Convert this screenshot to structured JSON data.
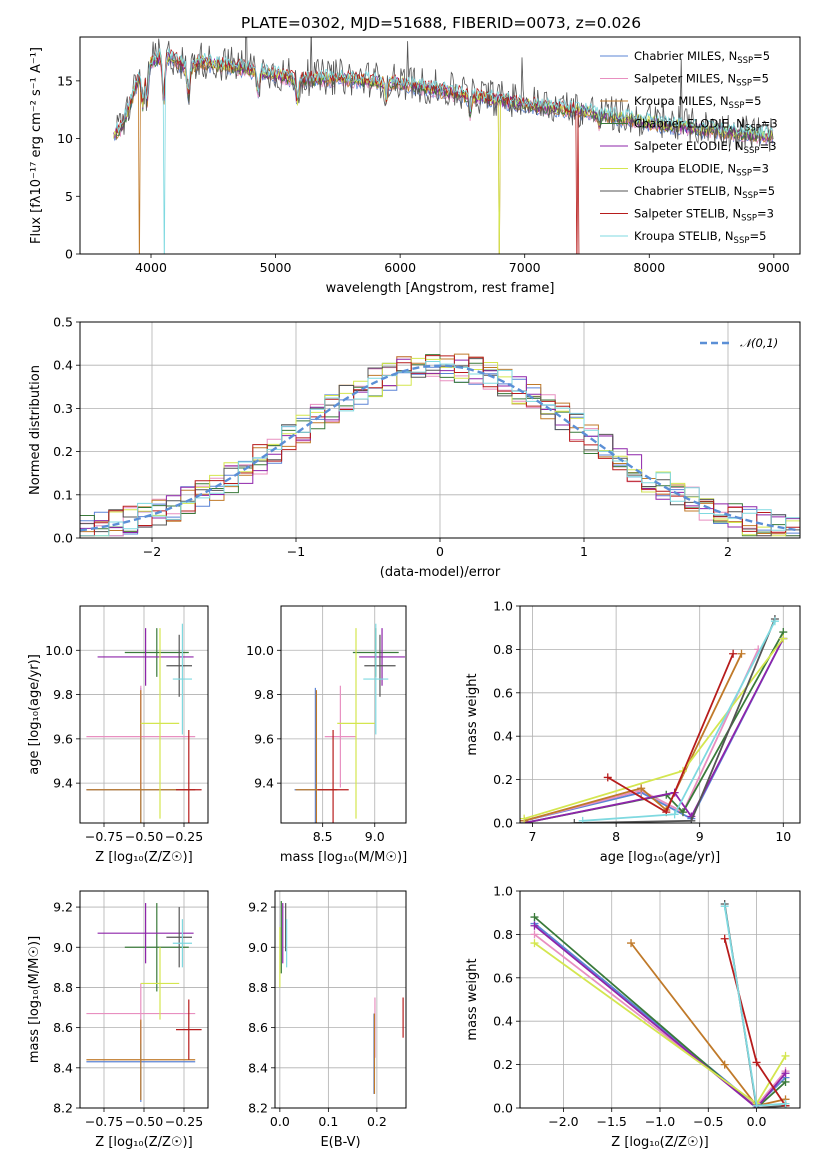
{
  "title": "PLATE=0302, MJD=51688, FIBERID=0073, z=0.026",
  "colors": {
    "Chabrier MILES": "#5b84d6",
    "Salpeter MILES": "#e88fc0",
    "Kroupa MILES": "#c07a2a",
    "Chabrier ELODIE": "#3a7a3a",
    "Salpeter ELODIE": "#8e24aa",
    "Kroupa ELODIE": "#d4e64f",
    "Chabrier STELIB": "#555555",
    "Salpeter STELIB": "#b71c1c",
    "Kroupa STELIB": "#7fd9e0",
    "gauss": "#5b8fd6"
  },
  "chart_data": [
    {
      "type": "line",
      "panel": "spectrum",
      "xlabel": "wavelength [Angstrom, rest frame]",
      "ylabel": "Flux [fλ10⁻¹⁷ erg cm⁻² s⁻¹ A⁻¹]",
      "xlim": [
        3430,
        9210
      ],
      "ylim": [
        0,
        18.8
      ],
      "xticks": [
        4000,
        5000,
        6000,
        7000,
        8000,
        9000
      ],
      "yticks": [
        0,
        5,
        10,
        15
      ],
      "legend_position": "top-right",
      "legend": [
        {
          "model": "Chabrier MILES",
          "n": "5"
        },
        {
          "model": "Salpeter MILES",
          "n": "5"
        },
        {
          "model": "Kroupa MILES",
          "n": "5"
        },
        {
          "model": "Chabrier ELODIE",
          "n": "3"
        },
        {
          "model": "Salpeter ELODIE",
          "n": "3"
        },
        {
          "model": "Kroupa ELODIE",
          "n": "3"
        },
        {
          "model": "Chabrier STELIB",
          "n": "5"
        },
        {
          "model": "Salpeter STELIB",
          "n": "3"
        },
        {
          "model": "Kroupa STELIB",
          "n": "5"
        }
      ],
      "continuum": {
        "x": [
          3700,
          3750,
          3800,
          3850,
          3900,
          3950,
          4000,
          4100,
          4200,
          4300,
          4400,
          4500,
          4700,
          5000,
          5200,
          5500,
          6000,
          6500,
          7000,
          7500,
          8000,
          8500,
          9000
        ],
        "y": [
          10.3,
          10.8,
          12.0,
          13.6,
          15.2,
          16.0,
          16.6,
          17.2,
          16.8,
          16.0,
          16.7,
          16.4,
          16.2,
          15.5,
          15.1,
          15.2,
          14.8,
          13.8,
          13.0,
          12.3,
          11.4,
          10.7,
          10.2
        ]
      }
    },
    {
      "type": "histogram",
      "panel": "residuals",
      "xlabel": "(data-model)/error",
      "ylabel": "Normed distribution",
      "xlim": [
        -2.5,
        2.5
      ],
      "ylim": [
        0,
        0.5
      ],
      "xticks": [
        -2,
        -1,
        0,
        1,
        2
      ],
      "yticks": [
        0.0,
        0.1,
        0.2,
        0.3,
        0.4,
        0.5
      ],
      "legend": "𝒩(0,1)",
      "legend_position": "top-right"
    },
    {
      "type": "errorbar",
      "panel": "age-vs-Z",
      "xlabel": "Z [log₁₀(Z/Z☉)]",
      "ylabel": "age  [log₁₀(age/yr)]",
      "xlim": [
        -0.9,
        -0.1
      ],
      "ylim": [
        9.22,
        10.2
      ],
      "xticks": [
        -0.75,
        -0.5,
        -0.25
      ],
      "yticks": [
        9.4,
        9.6,
        9.8,
        10.0
      ],
      "points": [
        {
          "model": "Chabrier MILES",
          "x": -0.52,
          "xerr": 0.34,
          "y": 9.37,
          "yerr": 0.46
        },
        {
          "model": "Salpeter MILES",
          "x": -0.52,
          "xerr": 0.34,
          "y": 9.61,
          "yerr": 0.23
        },
        {
          "model": "Kroupa MILES",
          "x": -0.52,
          "xerr": 0.34,
          "y": 9.37,
          "yerr": 0.45
        },
        {
          "model": "Chabrier ELODIE",
          "x": -0.42,
          "xerr": 0.2,
          "y": 9.99,
          "yerr": 0.11
        },
        {
          "model": "Salpeter ELODIE",
          "x": -0.49,
          "xerr": 0.3,
          "y": 9.97,
          "yerr": 0.13
        },
        {
          "model": "Kroupa ELODIE",
          "x": -0.4,
          "xerr": 0.12,
          "y": 9.67,
          "yerr": 0.43
        },
        {
          "model": "Chabrier STELIB",
          "x": -0.28,
          "xerr": 0.08,
          "y": 9.93,
          "yerr": 0.14
        },
        {
          "model": "Salpeter STELIB",
          "x": -0.22,
          "xerr": 0.08,
          "y": 9.37,
          "yerr": 0.27
        },
        {
          "model": "Kroupa STELIB",
          "x": -0.26,
          "xerr": 0.06,
          "y": 9.87,
          "yerr": 0.25
        }
      ]
    },
    {
      "type": "errorbar",
      "panel": "age-vs-mass",
      "xlabel": "mass [log₁₀(M/M☉)]",
      "ylabel": "",
      "xlim": [
        8.1,
        9.3
      ],
      "ylim": [
        9.22,
        10.2
      ],
      "xticks": [
        8.5,
        9.0
      ],
      "yticks": [
        9.4,
        9.6,
        9.8,
        10.0
      ],
      "points": [
        {
          "model": "Chabrier MILES",
          "x": 8.43,
          "xerr": 0.2,
          "y": 9.37,
          "yerr": 0.46
        },
        {
          "model": "Salpeter MILES",
          "x": 8.67,
          "xerr": 0.15,
          "y": 9.61,
          "yerr": 0.23
        },
        {
          "model": "Kroupa MILES",
          "x": 8.44,
          "xerr": 0.2,
          "y": 9.37,
          "yerr": 0.45
        },
        {
          "model": "Chabrier ELODIE",
          "x": 9.01,
          "xerr": 0.22,
          "y": 9.99,
          "yerr": 0.11
        },
        {
          "model": "Salpeter ELODIE",
          "x": 9.07,
          "xerr": 0.22,
          "y": 9.97,
          "yerr": 0.13
        },
        {
          "model": "Kroupa ELODIE",
          "x": 8.82,
          "xerr": 0.18,
          "y": 9.67,
          "yerr": 0.43
        },
        {
          "model": "Chabrier STELIB",
          "x": 9.05,
          "xerr": 0.15,
          "y": 9.93,
          "yerr": 0.14
        },
        {
          "model": "Salpeter STELIB",
          "x": 8.6,
          "xerr": 0.15,
          "y": 9.37,
          "yerr": 0.27
        },
        {
          "model": "Kroupa STELIB",
          "x": 9.01,
          "xerr": 0.12,
          "y": 9.87,
          "yerr": 0.25
        }
      ]
    },
    {
      "type": "line",
      "panel": "mass-weight-vs-age",
      "xlabel": "age  [log₁₀(age/yr)]",
      "ylabel": "mass weight",
      "xlim": [
        6.85,
        10.2
      ],
      "ylim": [
        0,
        1.0
      ],
      "xticks": [
        7,
        8,
        9,
        10
      ],
      "yticks": [
        0.0,
        0.2,
        0.4,
        0.6,
        0.8,
        1.0
      ],
      "series": [
        {
          "model": "Chabrier MILES",
          "x": [
            6.9,
            8.3,
            8.9,
            10.0
          ],
          "y": [
            0.01,
            0.14,
            0.02,
            0.85
          ]
        },
        {
          "model": "Salpeter MILES",
          "x": [
            6.9,
            8.3,
            8.8,
            9.7
          ],
          "y": [
            0.01,
            0.15,
            0.05,
            0.8
          ]
        },
        {
          "model": "Kroupa MILES",
          "x": [
            6.9,
            8.3,
            8.6,
            9.5
          ],
          "y": [
            0.01,
            0.16,
            0.06,
            0.78
          ]
        },
        {
          "model": "Chabrier ELODIE",
          "x": [
            6.9,
            8.6,
            8.8,
            10.0
          ],
          "y": [
            0.0,
            0.13,
            0.05,
            0.88
          ]
        },
        {
          "model": "Salpeter ELODIE",
          "x": [
            6.9,
            8.7,
            8.9,
            10.0
          ],
          "y": [
            0.0,
            0.14,
            0.03,
            0.85
          ]
        },
        {
          "model": "Kroupa ELODIE",
          "x": [
            6.9,
            8.8,
            10.0
          ],
          "y": [
            0.02,
            0.24,
            0.85
          ]
        },
        {
          "model": "Chabrier STELIB",
          "x": [
            7.5,
            8.9,
            9.9
          ],
          "y": [
            0.0,
            0.01,
            0.94
          ]
        },
        {
          "model": "Salpeter STELIB",
          "x": [
            7.9,
            8.6,
            9.4
          ],
          "y": [
            0.21,
            0.05,
            0.78
          ]
        },
        {
          "model": "Kroupa STELIB",
          "x": [
            7.6,
            8.7,
            9.9
          ],
          "y": [
            0.01,
            0.04,
            0.93
          ]
        }
      ]
    },
    {
      "type": "errorbar",
      "panel": "mass-vs-Z",
      "xlabel": "Z [log₁₀(Z/Z☉)]",
      "ylabel": "mass [log₁₀(M/M☉)]",
      "xlim": [
        -0.9,
        -0.1
      ],
      "ylim": [
        8.2,
        9.28
      ],
      "xticks": [
        -0.75,
        -0.5,
        -0.25
      ],
      "yticks": [
        8.2,
        8.4,
        8.6,
        8.8,
        9.0,
        9.2
      ],
      "points": [
        {
          "model": "Chabrier MILES",
          "x": -0.52,
          "xerr": 0.34,
          "y": 8.43,
          "yerr": 0.2
        },
        {
          "model": "Salpeter MILES",
          "x": -0.52,
          "xerr": 0.34,
          "y": 8.67,
          "yerr": 0.15
        },
        {
          "model": "Kroupa MILES",
          "x": -0.52,
          "xerr": 0.34,
          "y": 8.44,
          "yerr": 0.2
        },
        {
          "model": "Chabrier ELODIE",
          "x": -0.42,
          "xerr": 0.2,
          "y": 9.0,
          "yerr": 0.22
        },
        {
          "model": "Salpeter ELODIE",
          "x": -0.49,
          "xerr": 0.3,
          "y": 9.07,
          "yerr": 0.15
        },
        {
          "model": "Kroupa ELODIE",
          "x": -0.4,
          "xerr": 0.12,
          "y": 8.82,
          "yerr": 0.18
        },
        {
          "model": "Chabrier STELIB",
          "x": -0.28,
          "xerr": 0.08,
          "y": 9.05,
          "yerr": 0.15
        },
        {
          "model": "Salpeter STELIB",
          "x": -0.22,
          "xerr": 0.08,
          "y": 8.59,
          "yerr": 0.15
        },
        {
          "model": "Kroupa STELIB",
          "x": -0.26,
          "xerr": 0.06,
          "y": 9.02,
          "yerr": 0.12
        }
      ]
    },
    {
      "type": "errorbar",
      "panel": "mass-vs-EBV",
      "xlabel": "E(B-V)",
      "ylabel": "",
      "xlim": [
        -0.01,
        0.26
      ],
      "ylim": [
        8.2,
        9.28
      ],
      "xticks": [
        0.0,
        0.1,
        0.2
      ],
      "yticks": [
        8.2,
        8.4,
        8.6,
        8.8,
        9.0,
        9.2
      ],
      "points": [
        {
          "model": "Chabrier MILES",
          "x": 0.194,
          "y": 8.47,
          "yerr": 0.2
        },
        {
          "model": "Salpeter MILES",
          "x": 0.196,
          "y": 8.6,
          "yerr": 0.15
        },
        {
          "model": "Kroupa MILES",
          "x": 0.195,
          "y": 8.47,
          "yerr": 0.2
        },
        {
          "model": "Chabrier ELODIE",
          "x": 0.003,
          "y": 9.05,
          "yerr": 0.18
        },
        {
          "model": "Salpeter ELODIE",
          "x": 0.006,
          "y": 9.07,
          "yerr": 0.15
        },
        {
          "model": "Kroupa ELODIE",
          "x": 0.0,
          "y": 8.95,
          "yerr": 0.15
        },
        {
          "model": "Chabrier STELIB",
          "x": 0.012,
          "y": 9.1,
          "yerr": 0.12
        },
        {
          "model": "Salpeter STELIB",
          "x": 0.254,
          "y": 8.65,
          "yerr": 0.1
        },
        {
          "model": "Kroupa STELIB",
          "x": 0.014,
          "y": 9.02,
          "yerr": 0.12
        }
      ]
    },
    {
      "type": "line",
      "panel": "mass-weight-vs-Z",
      "xlabel": "Z [log₁₀(Z/Z☉)]",
      "ylabel": "mass weight",
      "xlim": [
        -2.45,
        0.45
      ],
      "ylim": [
        0,
        1.0
      ],
      "xticks": [
        -2.0,
        -1.5,
        -1.0,
        -0.5,
        0.0
      ],
      "yticks": [
        0.0,
        0.2,
        0.4,
        0.6,
        0.8,
        1.0
      ],
      "series": [
        {
          "model": "Chabrier MILES",
          "x": [
            -2.3,
            0.0,
            0.3
          ],
          "y": [
            0.85,
            0.01,
            0.14
          ]
        },
        {
          "model": "Salpeter MILES",
          "x": [
            -2.3,
            0.0,
            0.3
          ],
          "y": [
            0.8,
            0.01,
            0.17
          ]
        },
        {
          "model": "Kroupa MILES",
          "x": [
            -1.3,
            -0.33,
            0.0,
            0.3
          ],
          "y": [
            0.76,
            0.2,
            0.01,
            0.04
          ]
        },
        {
          "model": "Chabrier ELODIE",
          "x": [
            -2.3,
            0.0,
            0.3
          ],
          "y": [
            0.88,
            0.0,
            0.12
          ]
        },
        {
          "model": "Salpeter ELODIE",
          "x": [
            -2.3,
            0.0,
            0.3
          ],
          "y": [
            0.84,
            0.0,
            0.16
          ]
        },
        {
          "model": "Kroupa ELODIE",
          "x": [
            -2.3,
            0.0,
            0.3
          ],
          "y": [
            0.76,
            0.02,
            0.24
          ]
        },
        {
          "model": "Chabrier STELIB",
          "x": [
            -0.33,
            0.0,
            0.3
          ],
          "y": [
            0.94,
            0.0,
            0.01
          ]
        },
        {
          "model": "Salpeter STELIB",
          "x": [
            -0.33,
            0.0,
            0.3
          ],
          "y": [
            0.78,
            0.21,
            0.01
          ]
        },
        {
          "model": "Kroupa STELIB",
          "x": [
            -0.33,
            0.0,
            0.3
          ],
          "y": [
            0.93,
            0.01,
            0.02
          ]
        }
      ]
    }
  ]
}
